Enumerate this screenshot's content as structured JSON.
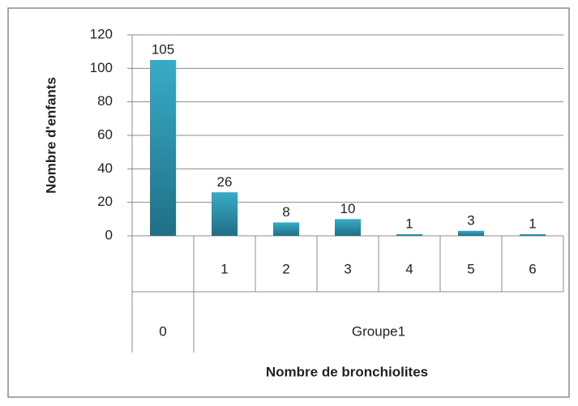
{
  "chart_data": {
    "type": "bar",
    "categories": [
      null,
      "1",
      "2",
      "3",
      "4",
      "5",
      "6"
    ],
    "groups": [
      {
        "label": "0",
        "span": 1
      },
      {
        "label": "Groupe1",
        "span": 6
      }
    ],
    "values": [
      105,
      26,
      8,
      10,
      1,
      3,
      1
    ],
    "color": "#2b94ae",
    "ylim": [
      0,
      120
    ],
    "yticks": [
      0,
      20,
      40,
      60,
      80,
      100,
      120
    ],
    "grid": true,
    "ylabel": "Nombre d'enfants",
    "xlabel": "Nombre de bronchiolites"
  }
}
